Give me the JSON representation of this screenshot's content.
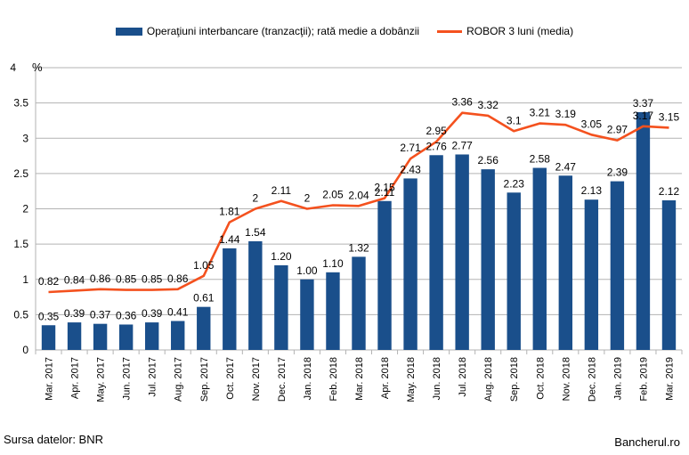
{
  "chart_data": {
    "type": "bar",
    "categories": [
      "Mar. 2017",
      "Apr. 2017",
      "May. 2017",
      "Jun. 2017",
      "Jul. 2017",
      "Aug. 2017",
      "Sep. 2017",
      "Oct. 2017",
      "Nov. 2017",
      "Dec. 2017",
      "Jan. 2018",
      "Feb. 2018",
      "Mar. 2018",
      "Apr. 2018",
      "May. 2018",
      "Jun. 2018",
      "Jul. 2018",
      "Aug. 2018",
      "Sep. 2018",
      "Oct. 2018",
      "Nov. 2018",
      "Dec. 2018",
      "Jan. 2019",
      "Feb. 2019",
      "Mar. 2019"
    ],
    "series": [
      {
        "name": "Operaţiuni interbancare (tranzacţii); rată medie a dobânzii",
        "type": "bar",
        "color": "#1a4f8b",
        "values": [
          0.35,
          0.39,
          0.37,
          0.36,
          0.39,
          0.41,
          0.61,
          1.44,
          1.54,
          1.2,
          1.0,
          1.1,
          1.32,
          2.11,
          2.43,
          2.76,
          2.77,
          2.56,
          2.23,
          2.58,
          2.47,
          2.13,
          2.39,
          3.37,
          2.12
        ],
        "labels": [
          "0.35",
          "0.39",
          "0.37",
          "0.36",
          "0.39",
          "0.41",
          "0.61",
          "1.44",
          "1.54",
          "1.20",
          "1.00",
          "1.10",
          "1.32",
          "2.11",
          "2.43",
          "2.76",
          "2.77",
          "2.56",
          "2.23",
          "2.58",
          "2.47",
          "2.13",
          "2.39",
          "3.37",
          "2.12"
        ]
      },
      {
        "name": "ROBOR 3 luni (media)",
        "type": "line",
        "color": "#f4511e",
        "values": [
          0.82,
          0.84,
          0.86,
          0.85,
          0.85,
          0.86,
          1.05,
          1.81,
          2,
          2.11,
          2,
          2.05,
          2.04,
          2.15,
          2.71,
          2.95,
          3.36,
          3.32,
          3.1,
          3.21,
          3.19,
          3.05,
          2.97,
          3.17,
          3.15
        ],
        "labels": [
          "0.82",
          "0.84",
          "0.86",
          "0.85",
          "0.85",
          "0.86",
          "1.05",
          "1.81",
          "2",
          "2.11",
          "2",
          "2.05",
          "2.04",
          "2.15",
          "2.71",
          "2.95",
          "3.36",
          "3.32",
          "3.1",
          "3.21",
          "3.19",
          "3.05",
          "2.97",
          "3.17",
          "3.15"
        ]
      }
    ],
    "ylim": [
      0,
      4
    ],
    "yticks": [
      "0",
      "0.5",
      "1",
      "1.5",
      "2",
      "2.5",
      "3",
      "3.5",
      "4"
    ],
    "unit": "%",
    "grid": true,
    "legend": "top"
  },
  "footer": {
    "source": "Sursa datelor: BNR",
    "brand": "Bancherul.ro"
  }
}
